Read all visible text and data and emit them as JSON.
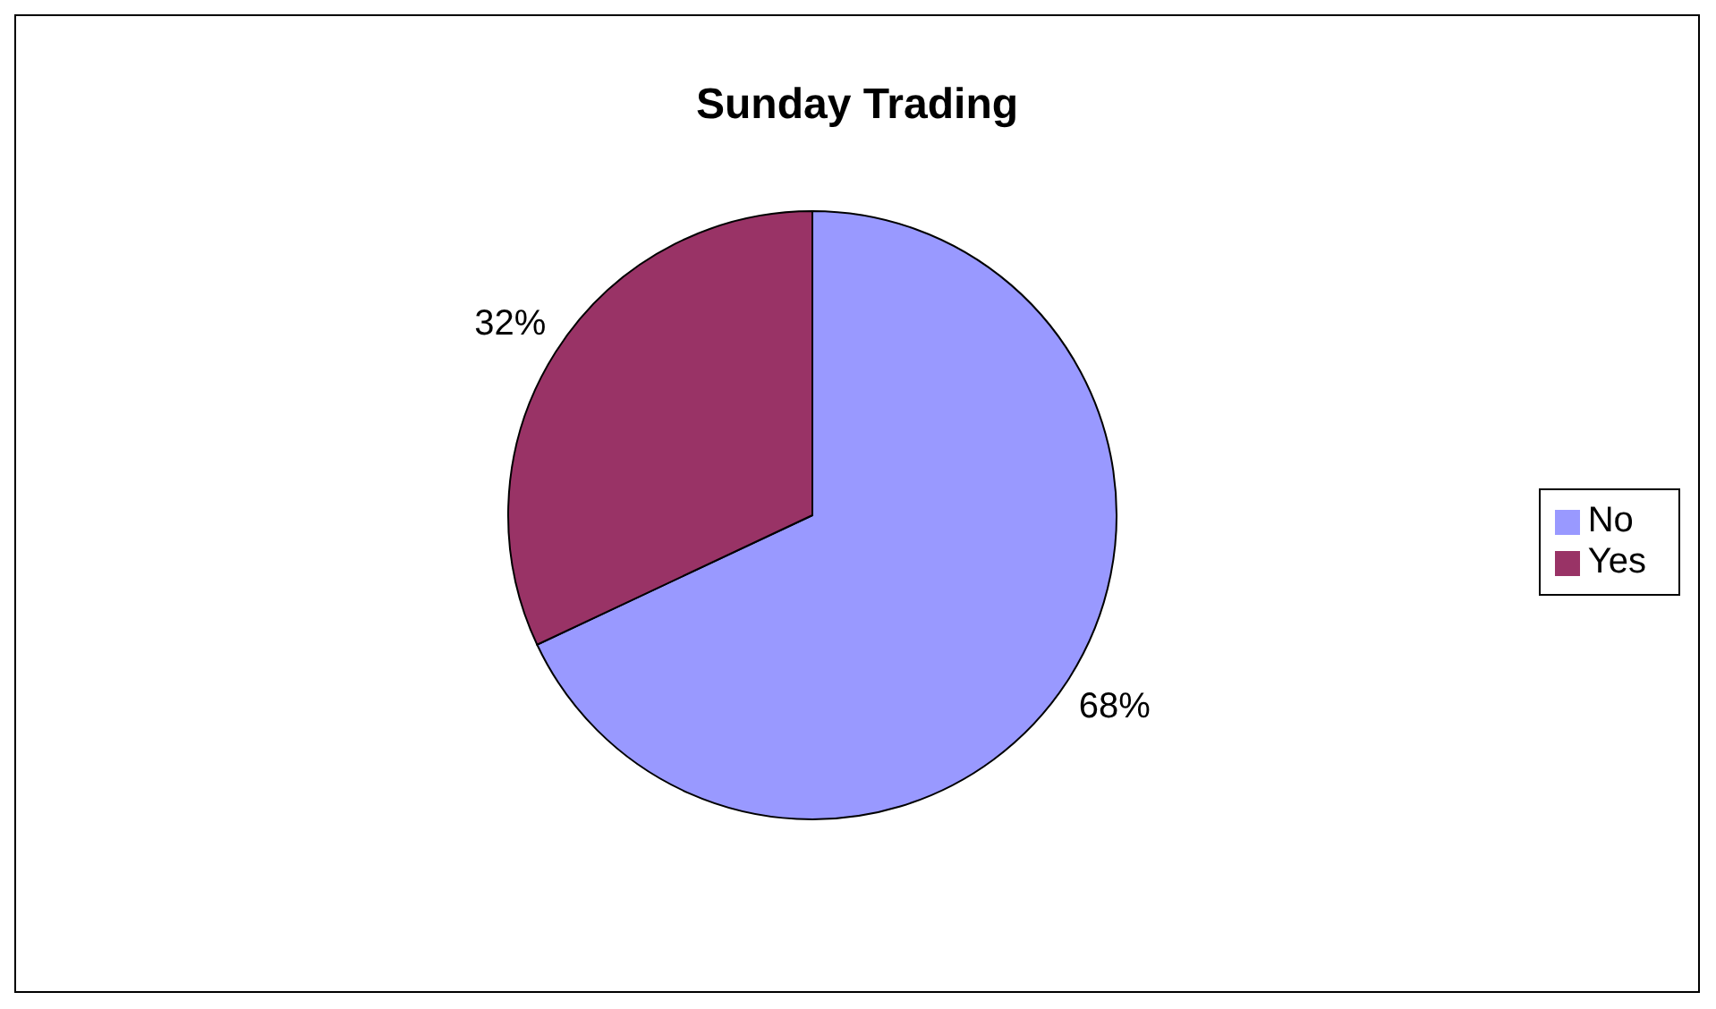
{
  "chart_data": {
    "type": "pie",
    "title": "Sunday Trading",
    "categories": [
      "No",
      "Yes"
    ],
    "values": [
      68,
      32
    ],
    "colors": [
      "#9999ff",
      "#993366"
    ],
    "value_labels": [
      "68%",
      "32%"
    ],
    "legend": "right"
  }
}
